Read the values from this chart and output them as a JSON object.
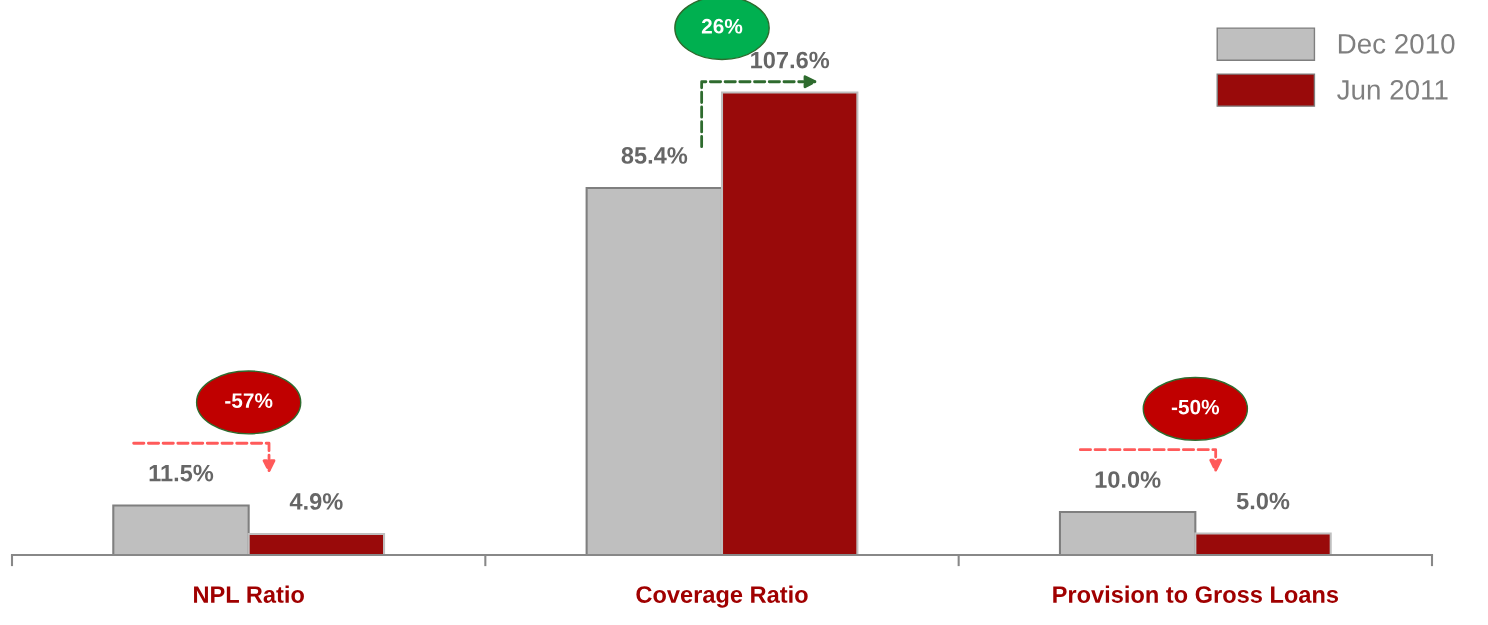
{
  "chart_data": {
    "type": "bar",
    "categories": [
      "NPL Ratio",
      "Coverage Ratio",
      "Provision to Gross Loans"
    ],
    "series": [
      {
        "name": "Dec 2010",
        "color": "#bfbfbf",
        "values": [
          11.5,
          85.4,
          10.0
        ],
        "value_labels": [
          "11.5%",
          "85.4%",
          "10.0%"
        ]
      },
      {
        "name": "Jun 2011",
        "color": "#990a0a",
        "values": [
          4.9,
          107.6,
          5.0
        ],
        "value_labels": [
          "4.9%",
          "107.6%",
          "5.0%"
        ]
      }
    ],
    "annotations": [
      "-57%",
      "26%",
      "-50%"
    ],
    "legend": "top right",
    "grid": false
  }
}
